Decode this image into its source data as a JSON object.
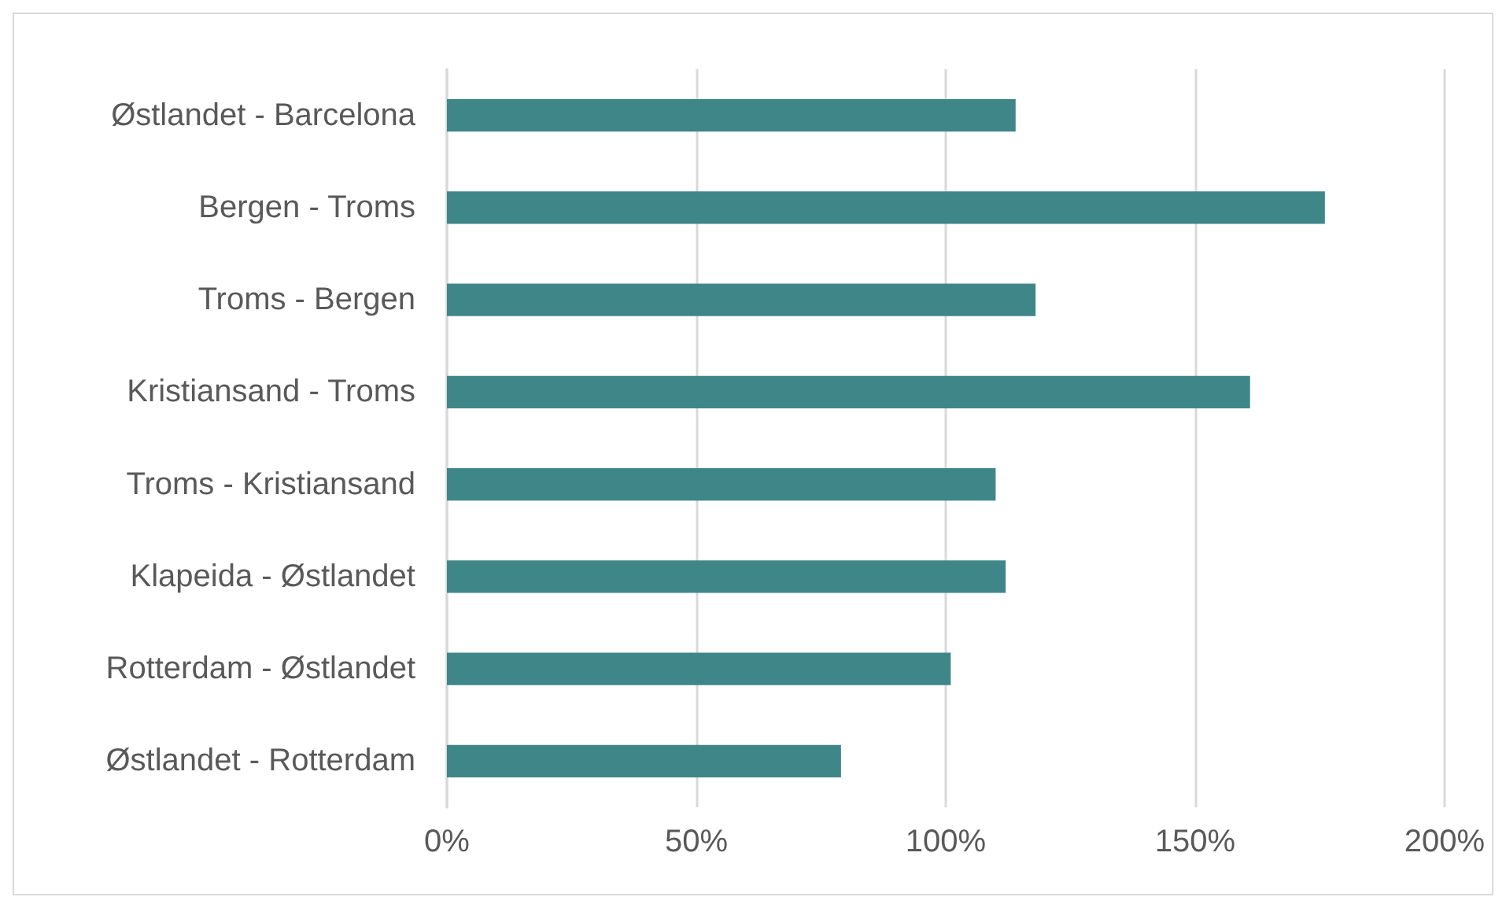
{
  "chart_data": {
    "type": "bar",
    "orientation": "horizontal",
    "categories": [
      "Østlandet - Barcelona",
      "Bergen - Troms",
      "Troms - Bergen",
      "Kristiansand - Troms",
      "Troms - Kristiansand",
      "Klapeida - Østlandet",
      "Rotterdam - Østlandet",
      "Østlandet - Rotterdam"
    ],
    "values": [
      114,
      176,
      118,
      161,
      110,
      112,
      101,
      79
    ],
    "color": "#3f8689",
    "xlim": [
      0,
      200
    ],
    "xticks": [
      {
        "value": 0,
        "label": "0%"
      },
      {
        "value": 50,
        "label": "50%"
      },
      {
        "value": 100,
        "label": "100%"
      },
      {
        "value": 150,
        "label": "150%"
      },
      {
        "value": 200,
        "label": "200%"
      }
    ],
    "grid": "x"
  }
}
